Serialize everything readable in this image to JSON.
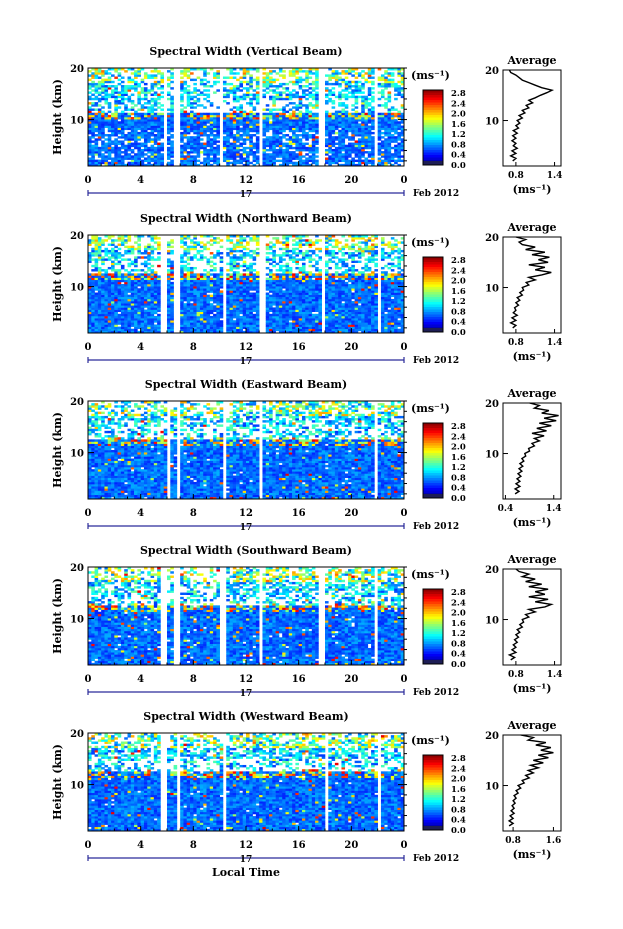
{
  "chart_data": [
    {
      "type": "heatmap",
      "title": "Spectral Width (Vertical Beam)",
      "ylabel": "Height (km)",
      "y_ticks": [
        "20",
        "10"
      ],
      "x_ticks": [
        "0",
        "4",
        "8",
        "12",
        "16",
        "20",
        "0"
      ],
      "xlim": [
        0,
        24
      ],
      "ylim": [
        1,
        20
      ],
      "day_label": "17",
      "date_label": "Feb 2012",
      "colorbar": {
        "unit": "(ms⁻¹)",
        "ticks": [
          "2.8",
          "2.4",
          "2.0",
          "1.6",
          "1.2",
          "0.8",
          "0.4",
          "0.0"
        ]
      },
      "average": {
        "title": "Average",
        "x_ticks": [
          "0.8",
          "1.4"
        ],
        "xlim": [
          0.6,
          1.5
        ],
        "y_ticks": [
          "20",
          "10"
        ],
        "xlabel": "(ms⁻¹)",
        "profile": [
          [
            0.75,
            2
          ],
          [
            0.8,
            2.5
          ],
          [
            0.72,
            3
          ],
          [
            0.8,
            3.5
          ],
          [
            0.74,
            4
          ],
          [
            0.82,
            4.5
          ],
          [
            0.76,
            5
          ],
          [
            0.8,
            5.5
          ],
          [
            0.74,
            6
          ],
          [
            0.8,
            6.5
          ],
          [
            0.75,
            7
          ],
          [
            0.82,
            7.5
          ],
          [
            0.76,
            8
          ],
          [
            0.84,
            8.5
          ],
          [
            0.8,
            9
          ],
          [
            0.86,
            9.5
          ],
          [
            0.82,
            10
          ],
          [
            0.9,
            10.5
          ],
          [
            0.85,
            11
          ],
          [
            0.94,
            11.5
          ],
          [
            0.9,
            12
          ],
          [
            1.0,
            12.5
          ],
          [
            0.96,
            13
          ],
          [
            1.06,
            13.5
          ],
          [
            1.0,
            14
          ],
          [
            1.1,
            14.5
          ],
          [
            1.18,
            15
          ],
          [
            1.28,
            15.5
          ],
          [
            1.36,
            16
          ],
          [
            1.2,
            16.5
          ],
          [
            1.1,
            17
          ],
          [
            1.0,
            17.5
          ],
          [
            0.9,
            18
          ],
          [
            0.85,
            18.5
          ],
          [
            0.8,
            19
          ],
          [
            0.72,
            19.5
          ],
          [
            0.7,
            20
          ]
        ]
      },
      "gaps": [
        [
          5.7,
          6.1
        ],
        [
          6.6,
          6.9
        ],
        [
          10.0,
          10.3
        ],
        [
          12.9,
          13.2
        ],
        [
          17.6,
          17.9
        ],
        [
          21.8,
          22.1
        ]
      ]
    },
    {
      "type": "heatmap",
      "title": "Spectral Width (Northward Beam)",
      "ylabel": "Height (km)",
      "y_ticks": [
        "20",
        "10"
      ],
      "x_ticks": [
        "0",
        "4",
        "8",
        "12",
        "16",
        "20",
        "0"
      ],
      "xlim": [
        0,
        24
      ],
      "ylim": [
        1,
        20
      ],
      "day_label": "17",
      "date_label": "Feb 2012",
      "colorbar": {
        "unit": "(ms⁻¹)",
        "ticks": [
          "2.8",
          "2.4",
          "2.0",
          "1.6",
          "1.2",
          "0.8",
          "0.4",
          "0.0"
        ]
      },
      "average": {
        "title": "Average",
        "x_ticks": [
          "0.8",
          "1.4"
        ],
        "xlim": [
          0.6,
          1.5
        ],
        "y_ticks": [
          "20",
          "10"
        ],
        "xlabel": "(ms⁻¹)",
        "profile": [
          [
            0.75,
            2
          ],
          [
            0.8,
            2.5
          ],
          [
            0.72,
            3
          ],
          [
            0.8,
            3.5
          ],
          [
            0.74,
            4
          ],
          [
            0.82,
            4.5
          ],
          [
            0.76,
            5
          ],
          [
            0.8,
            5.5
          ],
          [
            0.78,
            6
          ],
          [
            0.84,
            6.5
          ],
          [
            0.8,
            7
          ],
          [
            0.86,
            7.5
          ],
          [
            0.82,
            8
          ],
          [
            0.9,
            8.5
          ],
          [
            0.86,
            9
          ],
          [
            0.92,
            9.5
          ],
          [
            0.9,
            10
          ],
          [
            1.0,
            10.5
          ],
          [
            0.96,
            11
          ],
          [
            1.1,
            11.5
          ],
          [
            1.0,
            12
          ],
          [
            1.2,
            12.5
          ],
          [
            1.35,
            13
          ],
          [
            1.1,
            13.5
          ],
          [
            1.25,
            14
          ],
          [
            1.0,
            14.5
          ],
          [
            1.3,
            15
          ],
          [
            1.15,
            15.5
          ],
          [
            1.32,
            16
          ],
          [
            1.05,
            16.5
          ],
          [
            1.25,
            17
          ],
          [
            0.95,
            17.5
          ],
          [
            1.1,
            18
          ],
          [
            0.9,
            18.5
          ],
          [
            0.85,
            19
          ],
          [
            0.95,
            19.5
          ],
          [
            0.8,
            20
          ]
        ]
      },
      "gaps": [
        [
          5.5,
          5.9
        ],
        [
          6.6,
          6.9
        ],
        [
          10.3,
          10.6
        ],
        [
          13.1,
          13.4
        ],
        [
          17.7,
          18.0
        ],
        [
          21.9,
          22.2
        ]
      ]
    },
    {
      "type": "heatmap",
      "title": "Spectral Width (Eastward Beam)",
      "ylabel": "Height (km)",
      "y_ticks": [
        "20",
        "10"
      ],
      "x_ticks": [
        "0",
        "4",
        "8",
        "12",
        "16",
        "20",
        "0"
      ],
      "xlim": [
        0,
        24
      ],
      "ylim": [
        1,
        20
      ],
      "day_label": "17",
      "date_label": "Feb 2012",
      "colorbar": {
        "unit": "(ms⁻¹)",
        "ticks": [
          "2.8",
          "2.4",
          "2.0",
          "1.6",
          "1.2",
          "0.8",
          "0.4",
          "0.0"
        ]
      },
      "average": {
        "title": "Average",
        "x_ticks": [
          "0.4",
          "1.4"
        ],
        "xlim": [
          0.35,
          1.55
        ],
        "y_ticks": [
          "20",
          "10"
        ],
        "xlabel": "(ms⁻¹)",
        "profile": [
          [
            0.6,
            2
          ],
          [
            0.68,
            2.5
          ],
          [
            0.6,
            3
          ],
          [
            0.7,
            3.5
          ],
          [
            0.62,
            4
          ],
          [
            0.7,
            4.5
          ],
          [
            0.64,
            5
          ],
          [
            0.72,
            5.5
          ],
          [
            0.66,
            6
          ],
          [
            0.74,
            6.5
          ],
          [
            0.68,
            7
          ],
          [
            0.76,
            7.5
          ],
          [
            0.7,
            8
          ],
          [
            0.78,
            8.5
          ],
          [
            0.74,
            9
          ],
          [
            0.82,
            9.5
          ],
          [
            0.8,
            10
          ],
          [
            0.9,
            10.5
          ],
          [
            0.88,
            11
          ],
          [
            1.0,
            11.5
          ],
          [
            0.95,
            12
          ],
          [
            1.1,
            12.5
          ],
          [
            1.0,
            13
          ],
          [
            1.2,
            13.5
          ],
          [
            0.95,
            14
          ],
          [
            1.25,
            14.5
          ],
          [
            1.05,
            15
          ],
          [
            1.35,
            15.5
          ],
          [
            1.1,
            16
          ],
          [
            1.45,
            16.5
          ],
          [
            1.2,
            17
          ],
          [
            1.5,
            17.5
          ],
          [
            1.15,
            18
          ],
          [
            1.3,
            18.5
          ],
          [
            1.0,
            19
          ],
          [
            1.1,
            19.5
          ],
          [
            0.9,
            20
          ]
        ]
      },
      "gaps": [
        [
          5.9,
          6.3
        ],
        [
          6.8,
          7.1
        ],
        [
          10.2,
          10.5
        ],
        [
          13.0,
          13.3
        ],
        [
          21.7,
          22.0
        ]
      ]
    },
    {
      "type": "heatmap",
      "title": "Spectral Width (Southward Beam)",
      "ylabel": "Height (km)",
      "y_ticks": [
        "20",
        "10"
      ],
      "x_ticks": [
        "0",
        "4",
        "8",
        "12",
        "16",
        "20",
        "0"
      ],
      "xlim": [
        0,
        24
      ],
      "ylim": [
        1,
        20
      ],
      "day_label": "17",
      "date_label": "Feb 2012",
      "colorbar": {
        "unit": "(ms⁻¹)",
        "ticks": [
          "2.8",
          "2.4",
          "2.0",
          "1.6",
          "1.2",
          "0.8",
          "0.4",
          "0.0"
        ]
      },
      "average": {
        "title": "Average",
        "x_ticks": [
          "0.8",
          "1.4"
        ],
        "xlim": [
          0.6,
          1.5
        ],
        "y_ticks": [
          "20",
          "10"
        ],
        "xlabel": "(ms⁻¹)",
        "profile": [
          [
            0.72,
            2
          ],
          [
            0.78,
            2.5
          ],
          [
            0.7,
            3
          ],
          [
            0.8,
            3.5
          ],
          [
            0.74,
            4
          ],
          [
            0.8,
            4.5
          ],
          [
            0.76,
            5
          ],
          [
            0.82,
            5.5
          ],
          [
            0.78,
            6
          ],
          [
            0.84,
            6.5
          ],
          [
            0.8,
            7
          ],
          [
            0.86,
            7.5
          ],
          [
            0.82,
            8
          ],
          [
            0.9,
            8.5
          ],
          [
            0.86,
            9
          ],
          [
            0.92,
            9.5
          ],
          [
            0.9,
            10
          ],
          [
            1.0,
            10.5
          ],
          [
            0.95,
            11
          ],
          [
            1.1,
            11.5
          ],
          [
            1.0,
            12
          ],
          [
            1.25,
            12.5
          ],
          [
            1.35,
            13
          ],
          [
            1.1,
            13.5
          ],
          [
            1.3,
            14
          ],
          [
            1.0,
            14.5
          ],
          [
            1.25,
            15
          ],
          [
            1.1,
            15.5
          ],
          [
            1.3,
            16
          ],
          [
            1.0,
            16.5
          ],
          [
            1.2,
            17
          ],
          [
            0.95,
            17.5
          ],
          [
            1.1,
            18
          ],
          [
            0.9,
            18.5
          ],
          [
            1.0,
            19
          ],
          [
            0.85,
            19.5
          ],
          [
            0.8,
            20
          ]
        ]
      },
      "gaps": [
        [
          5.6,
          6.0
        ],
        [
          6.6,
          6.9
        ],
        [
          10.1,
          10.4
        ],
        [
          13.0,
          13.3
        ],
        [
          17.6,
          17.9
        ],
        [
          21.8,
          22.1
        ]
      ]
    },
    {
      "type": "heatmap",
      "title": "Spectral Width (Westward Beam)",
      "ylabel": "Height (km)",
      "y_ticks": [
        "20",
        "10"
      ],
      "x_ticks": [
        "0",
        "4",
        "8",
        "12",
        "16",
        "20",
        "0"
      ],
      "xlabel": "Local Time",
      "xlim": [
        0,
        24
      ],
      "ylim": [
        1,
        20
      ],
      "day_label": "17",
      "date_label": "Feb 2012",
      "colorbar": {
        "unit": "(ms⁻¹)",
        "ticks": [
          "2.8",
          "2.4",
          "2.0",
          "1.6",
          "1.2",
          "0.8",
          "0.4",
          "0.0"
        ]
      },
      "average": {
        "title": "Average",
        "x_ticks": [
          "0.8",
          "1.6"
        ],
        "xlim": [
          0.6,
          1.75
        ],
        "y_ticks": [
          "20",
          "10"
        ],
        "xlabel": "(ms⁻¹)",
        "profile": [
          [
            0.72,
            2
          ],
          [
            0.8,
            2.5
          ],
          [
            0.72,
            3
          ],
          [
            0.8,
            3.5
          ],
          [
            0.74,
            4
          ],
          [
            0.82,
            4.5
          ],
          [
            0.76,
            5
          ],
          [
            0.82,
            5.5
          ],
          [
            0.78,
            6
          ],
          [
            0.84,
            6.5
          ],
          [
            0.8,
            7
          ],
          [
            0.86,
            7.5
          ],
          [
            0.82,
            8
          ],
          [
            0.9,
            8.5
          ],
          [
            0.86,
            9
          ],
          [
            0.95,
            9.5
          ],
          [
            0.9,
            10
          ],
          [
            1.02,
            10.5
          ],
          [
            0.98,
            11
          ],
          [
            1.12,
            11.5
          ],
          [
            1.05,
            12
          ],
          [
            1.2,
            12.5
          ],
          [
            1.1,
            13
          ],
          [
            1.3,
            13.5
          ],
          [
            1.15,
            14
          ],
          [
            1.4,
            14.5
          ],
          [
            1.2,
            15
          ],
          [
            1.5,
            15.5
          ],
          [
            1.3,
            16
          ],
          [
            1.6,
            16.5
          ],
          [
            1.35,
            17
          ],
          [
            1.55,
            17.5
          ],
          [
            1.25,
            18
          ],
          [
            1.45,
            18.5
          ],
          [
            1.1,
            19
          ],
          [
            1.2,
            19.5
          ],
          [
            0.95,
            20
          ]
        ]
      },
      "gaps": [
        [
          5.5,
          5.9
        ],
        [
          6.7,
          7.0
        ],
        [
          10.3,
          10.6
        ],
        [
          17.9,
          18.2
        ],
        [
          21.9,
          22.2
        ]
      ]
    }
  ]
}
